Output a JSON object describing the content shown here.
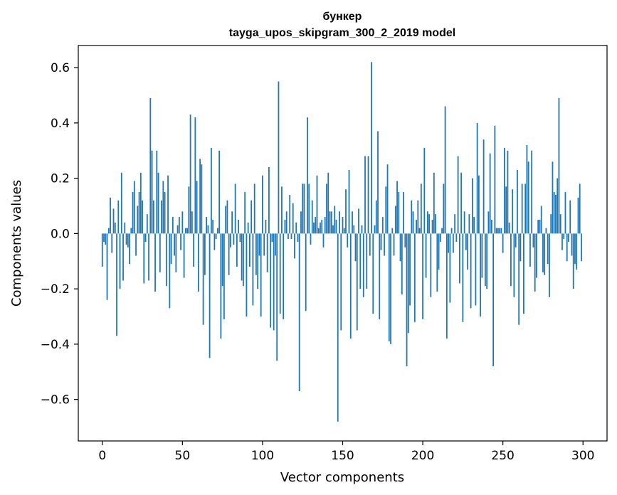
{
  "chart_data": {
    "type": "bar",
    "title": "бункер",
    "subtitle": "tayga_upos_skipgram_300_2_2019 model",
    "xlabel": "Vector components",
    "ylabel": "Components values",
    "xlim": [
      -15,
      315
    ],
    "ylim": [
      -0.75,
      0.68
    ],
    "xticks": [
      0,
      50,
      100,
      150,
      200,
      250,
      300
    ],
    "yticks": [
      -0.6,
      -0.4,
      -0.2,
      0.0,
      0.2,
      0.4,
      0.6
    ],
    "ytick_labels": [
      "−0.6",
      "−0.4",
      "−0.2",
      "0.0",
      "0.2",
      "0.4",
      "0.6"
    ],
    "bar_color": "#1f77b4",
    "grid": false,
    "values": [
      -0.12,
      -0.03,
      -0.04,
      -0.24,
      0.02,
      0.13,
      -0.07,
      0.09,
      0.04,
      -0.37,
      0.12,
      -0.2,
      0.22,
      -0.17,
      0.04,
      -0.04,
      -0.05,
      -0.11,
      0.02,
      0.15,
      0.19,
      -0.08,
      0.1,
      0.15,
      0.22,
      0.12,
      -0.18,
      -0.03,
      0.07,
      -0.17,
      0.49,
      0.3,
      0.12,
      -0.21,
      0.3,
      0.22,
      -0.14,
      0.12,
      0.19,
      0.15,
      -0.19,
      0.21,
      -0.27,
      -0.11,
      0.06,
      -0.08,
      -0.14,
      0.03,
      0.06,
      -0.06,
      0.08,
      -0.16,
      0.02,
      0.02,
      0.17,
      0.43,
      0.08,
      -0.12,
      0.42,
      0.19,
      -0.21,
      0.27,
      0.25,
      -0.33,
      -0.15,
      0.06,
      0.03,
      -0.45,
      0.31,
      0.05,
      -0.06,
      -0.02,
      0.02,
      0.3,
      -0.38,
      -0.19,
      -0.31,
      0.1,
      0.12,
      -0.15,
      -0.05,
      0.08,
      -0.04,
      0.18,
      -0.12,
      0.05,
      -0.03,
      -0.17,
      -0.19,
      0.15,
      -0.3,
      0.04,
      -0.12,
      0.12,
      -0.26,
      0.18,
      -0.15,
      -0.2,
      -0.08,
      -0.3,
      0.21,
      -0.08,
      0.05,
      -0.14,
      0.24,
      -0.34,
      -0.03,
      -0.35,
      -0.08,
      -0.46,
      0.55,
      -0.29,
      0.17,
      -0.31,
      0.05,
      0.08,
      -0.02,
      0.14,
      -0.02,
      0.11,
      -0.09,
      0.04,
      -0.03,
      -0.57,
      0.08,
      0.18,
      0.18,
      -0.28,
      0.42,
      0.18,
      -0.04,
      0.12,
      0.04,
      0.06,
      0.21,
      0.02,
      0.04,
      0.05,
      -0.05,
      0.06,
      0.18,
      0.22,
      0.08,
      0.08,
      0.03,
      0.1,
      0.05,
      -0.68,
      0.08,
      -0.35,
      0.06,
      0.02,
      0.16,
      -0.05,
      0.23,
      -0.38,
      0.08,
      0.03,
      -0.1,
      -0.35,
      0.09,
      -0.2,
      0.03,
      -0.23,
      0.28,
      -0.2,
      0.28,
      -0.08,
      0.62,
      -0.29,
      0.03,
      0.12,
      0.37,
      -0.31,
      -0.06,
      0.06,
      -0.08,
      0.17,
      0.25,
      -0.39,
      -0.4,
      0.02,
      -0.08,
      0.1,
      0.19,
      0.15,
      -0.1,
      -0.22,
      0.15,
      -0.05,
      -0.48,
      -0.36,
      -0.26,
      0.12,
      0.08,
      -0.32,
      0.05,
      0.12,
      0.02,
      0.18,
      -0.31,
      0.31,
      -0.16,
      0.08,
      0.07,
      -0.23,
      0.05,
      0.22,
      0.07,
      -0.21,
      -0.13,
      -0.03,
      0.02,
      0.18,
      0.46,
      -0.38,
      -0.07,
      -0.25,
      0.02,
      -0.07,
      0.07,
      -0.03,
      0.28,
      -0.18,
      0.22,
      -0.32,
      0.08,
      -0.06,
      -0.13,
      0.07,
      -0.27,
      0.2,
      0.06,
      -0.26,
      0.4,
      0.21,
      -0.3,
      -0.16,
      0.34,
      -0.19,
      -0.2,
      0.08,
      0.29,
      0.05,
      -0.48,
      0.39,
      0.02,
      0.02,
      0.02,
      0.02,
      -0.07,
      0.31,
      0.17,
      0.3,
      0.04,
      -0.19,
      0.16,
      -0.23,
      -0.05,
      0.23,
      -0.33,
      -0.1,
      0.18,
      -0.29,
      0.18,
      0.32,
      0.26,
      -0.12,
      0.3,
      -0.05,
      -0.21,
      -0.16,
      0.05,
      0.05,
      0.1,
      -0.14,
      -0.15,
      0.02,
      -0.11,
      -0.23,
      0.07,
      0.26,
      0.15,
      0.14,
      0.2,
      0.49,
      0.07,
      -0.06,
      -0.02,
      0.15,
      -0.1,
      -0.03,
      0.12,
      -0.08,
      -0.2,
      -0.11,
      -0.13,
      0.13,
      0.18,
      -0.1
    ]
  }
}
